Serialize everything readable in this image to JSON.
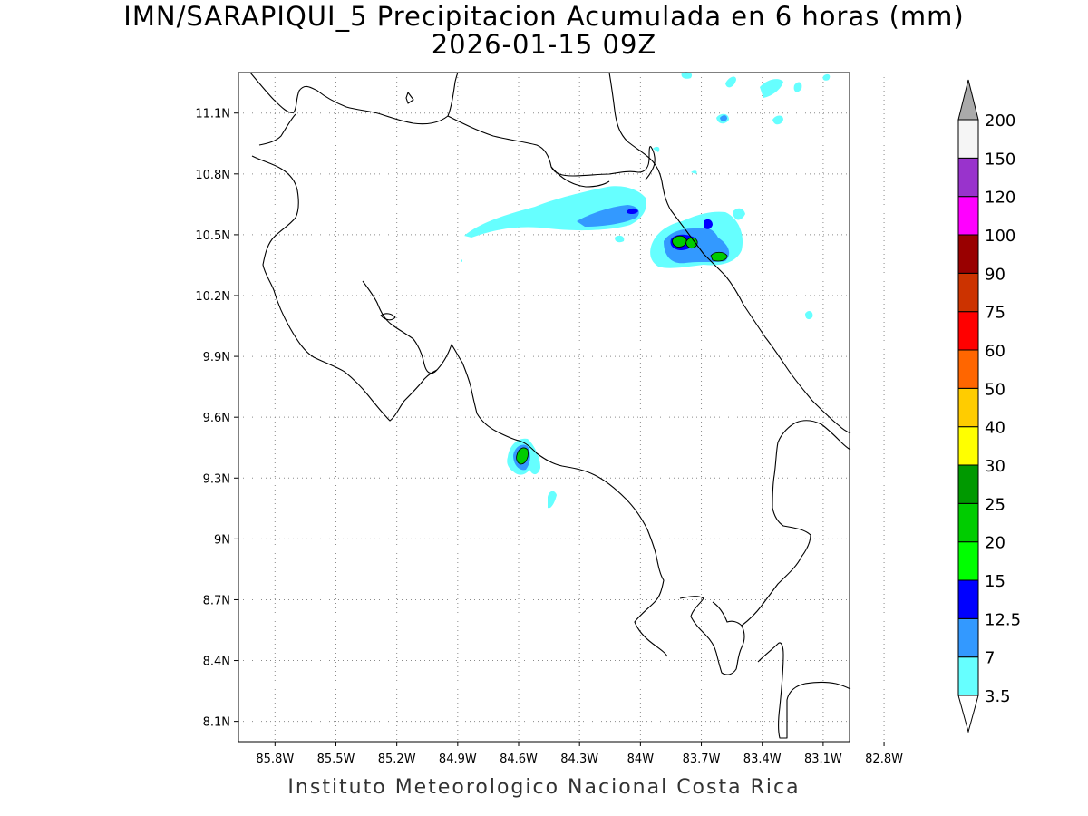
{
  "title": {
    "line1": "IMN/SARAPIQUI_5 Precipitacion Acumulada en 6 horas (mm)",
    "line2": "2026-01-15 09Z"
  },
  "footer": "Instituto Meteorologico Nacional Costa Rica",
  "map": {
    "lon_range": [
      -85.98,
      -82.97
    ],
    "lat_range": [
      8.0,
      11.3
    ],
    "lon_ticks": [
      {
        "value": -85.8,
        "label": "85.8W"
      },
      {
        "value": -85.5,
        "label": "85.5W"
      },
      {
        "value": -85.2,
        "label": "85.2W"
      },
      {
        "value": -84.9,
        "label": "84.9W"
      },
      {
        "value": -84.6,
        "label": "84.6W"
      },
      {
        "value": -84.3,
        "label": "84.3W"
      },
      {
        "value": -84.0,
        "label": "84W"
      },
      {
        "value": -83.7,
        "label": "83.7W"
      },
      {
        "value": -83.4,
        "label": "83.4W"
      },
      {
        "value": -83.1,
        "label": "83.1W"
      },
      {
        "value": -82.8,
        "label": "82.8W"
      }
    ],
    "lat_ticks": [
      {
        "value": 11.1,
        "label": "11.1N"
      },
      {
        "value": 10.8,
        "label": "10.8N"
      },
      {
        "value": 10.5,
        "label": "10.5N"
      },
      {
        "value": 10.2,
        "label": "10.2N"
      },
      {
        "value": 9.9,
        "label": "9.9N"
      },
      {
        "value": 9.6,
        "label": "9.6N"
      },
      {
        "value": 9.3,
        "label": "9.3N"
      },
      {
        "value": 9.0,
        "label": "9N"
      },
      {
        "value": 8.7,
        "label": "8.7N"
      },
      {
        "value": 8.4,
        "label": "8.4N"
      },
      {
        "value": 8.1,
        "label": "8.1N"
      }
    ],
    "grid": true
  },
  "colorbar": {
    "levels": [
      {
        "label": "3.5",
        "color": "#66ffff"
      },
      {
        "label": "7",
        "color": "#3399ff"
      },
      {
        "label": "12.5",
        "color": "#0000ff"
      },
      {
        "label": "15",
        "color": "#00ff00"
      },
      {
        "label": "20",
        "color": "#00cc00"
      },
      {
        "label": "25",
        "color": "#009900"
      },
      {
        "label": "30",
        "color": "#ffff00"
      },
      {
        "label": "40",
        "color": "#ffcc00"
      },
      {
        "label": "50",
        "color": "#ff6600"
      },
      {
        "label": "60",
        "color": "#ff0000"
      },
      {
        "label": "75",
        "color": "#cc3300"
      },
      {
        "label": "90",
        "color": "#990000"
      },
      {
        "label": "100",
        "color": "#ff00ff"
      },
      {
        "label": "120",
        "color": "#9933cc"
      },
      {
        "label": "150",
        "color": "#f5f5f5"
      },
      {
        "label": "200",
        "color": "#aaaaaa"
      }
    ],
    "bottom_arrow_color": "#ffffff",
    "top_arrow_color": "#aaaaaa"
  }
}
